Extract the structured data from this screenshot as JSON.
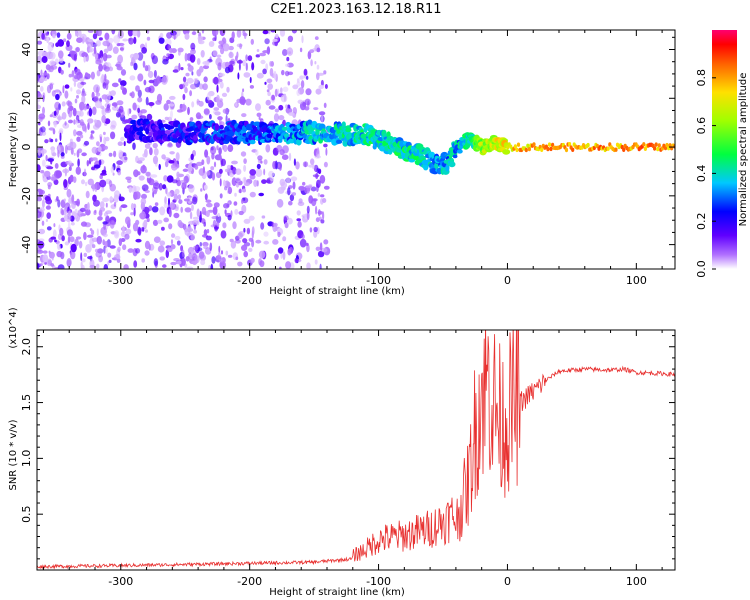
{
  "title": "C2E1.2023.163.12.18.R11",
  "colors": {
    "snr_line": "#e8302f",
    "axis": "#000000",
    "background": "#ffffff"
  },
  "chart_data": [
    {
      "type": "heatmap",
      "xlabel": "Height of straight line (km)",
      "ylabel": "Frequency (Hz)",
      "xlim": [
        -365,
        130
      ],
      "ylim": [
        -50,
        48
      ],
      "xticks": [
        -300,
        -200,
        -100,
        0,
        100
      ],
      "xtick_labels": [
        "-300",
        "-200",
        "-100",
        "0",
        "100"
      ],
      "yticks": [
        -40,
        -20,
        0,
        20,
        40
      ],
      "ytick_labels": [
        "-40",
        "-20",
        "0",
        "20",
        "40"
      ],
      "colorbar": {
        "label": "Normalized spectral amplitude",
        "range": [
          0,
          1
        ],
        "ticks": [
          0.0,
          0.2,
          0.4,
          0.6,
          0.8
        ],
        "tick_labels": [
          "0.0",
          "0.2",
          "0.4",
          "0.6",
          "0.8"
        ],
        "colormap": [
          "#ffffff",
          "#8000ff",
          "#0000ff",
          "#00ffff",
          "#00ff00",
          "#ffff00",
          "#ff8000",
          "#ff0000",
          "#ff0080"
        ]
      },
      "ridge": {
        "x": [
          -290,
          -250,
          -200,
          -150,
          -110,
          -90,
          -70,
          -50,
          -40,
          -30,
          -20,
          -10,
          0,
          50,
          130
        ],
        "y": [
          7,
          6,
          6,
          6,
          5,
          1,
          -3,
          -8,
          -1,
          3,
          0,
          2,
          0,
          0,
          0
        ],
        "amplitude": [
          0.25,
          0.3,
          0.35,
          0.45,
          0.5,
          0.5,
          0.5,
          0.45,
          0.45,
          0.5,
          0.7,
          0.75,
          0.85,
          0.9,
          0.9
        ]
      }
    },
    {
      "type": "line",
      "xlabel": "Height of straight line (km)",
      "ylabel": "SNR (10 * v/v)",
      "y_multiplier": "(x10^4)",
      "xlim": [
        -365,
        130
      ],
      "ylim": [
        0,
        2.15
      ],
      "xticks": [
        -300,
        -200,
        -100,
        0,
        100
      ],
      "xtick_labels": [
        "-300",
        "-200",
        "-100",
        "0",
        "100"
      ],
      "yticks": [
        0.5,
        1.0,
        1.5,
        2.0
      ],
      "ytick_labels": [
        "0.5",
        "1.0",
        "1.5",
        "2.0"
      ],
      "series": [
        {
          "color": "#e8302f",
          "x": [
            -365,
            -300,
            -250,
            -200,
            -150,
            -120,
            -110,
            -100,
            -80,
            -60,
            -40,
            -30,
            -25,
            -20,
            -15,
            -10,
            -5,
            0,
            10,
            20,
            30,
            40,
            60,
            80,
            90,
            100,
            120,
            130
          ],
          "y": [
            0.03,
            0.04,
            0.05,
            0.06,
            0.07,
            0.1,
            0.15,
            0.22,
            0.25,
            0.3,
            0.4,
            0.75,
            1.2,
            1.5,
            1.6,
            1.4,
            1.25,
            1.3,
            1.5,
            1.6,
            1.7,
            1.78,
            1.8,
            1.79,
            1.8,
            1.77,
            1.76,
            1.75
          ]
        }
      ]
    }
  ]
}
